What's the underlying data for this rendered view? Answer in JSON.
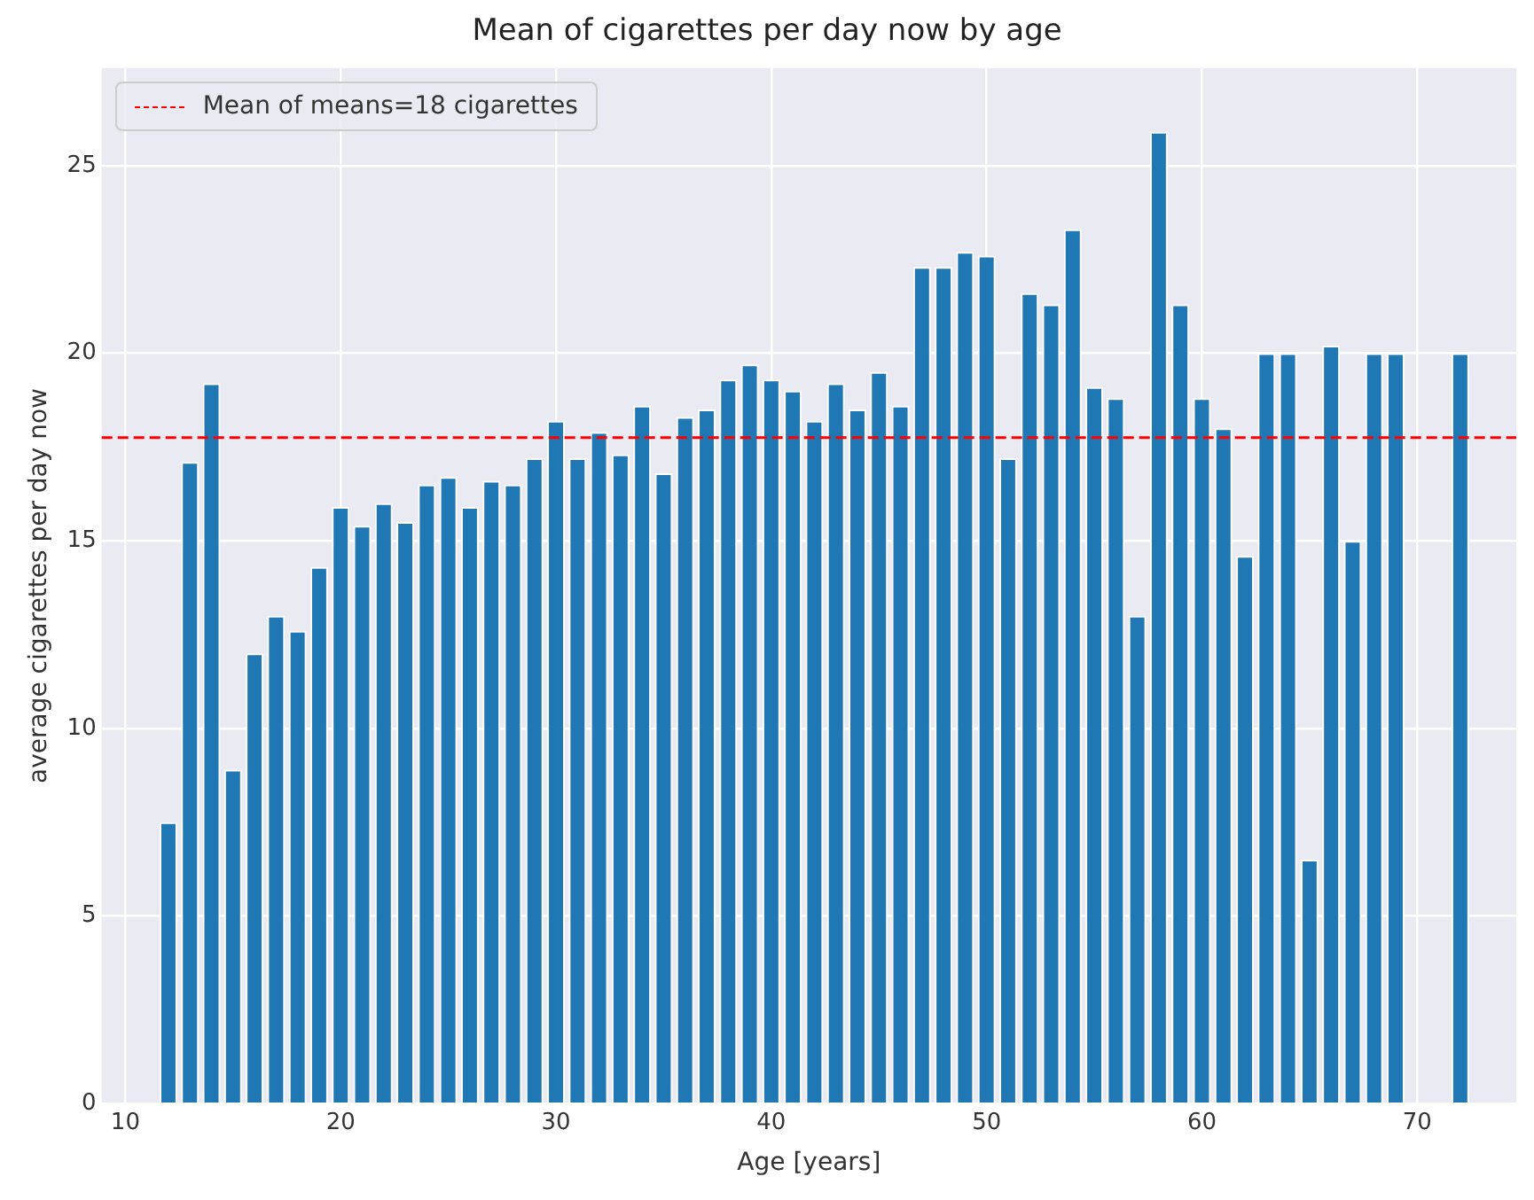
{
  "chart_data": {
    "type": "bar",
    "title": "Mean of cigarettes per day now by age",
    "xlabel": "Age [years]",
    "ylabel": "average cigarettes per day now",
    "x": [
      12,
      13,
      14,
      15,
      16,
      17,
      18,
      19,
      20,
      21,
      22,
      23,
      24,
      25,
      26,
      27,
      28,
      29,
      30,
      31,
      32,
      33,
      34,
      35,
      36,
      37,
      38,
      39,
      40,
      41,
      42,
      43,
      44,
      45,
      46,
      47,
      48,
      49,
      50,
      51,
      52,
      53,
      54,
      55,
      56,
      57,
      58,
      59,
      60,
      61,
      62,
      63,
      64,
      65,
      66,
      67,
      68,
      69,
      72
    ],
    "values": [
      7.5,
      17.1,
      19.2,
      8.9,
      12.0,
      13.0,
      12.6,
      14.3,
      15.9,
      15.4,
      16.0,
      15.5,
      16.5,
      16.7,
      15.9,
      16.6,
      16.5,
      17.2,
      18.2,
      17.2,
      17.9,
      17.3,
      18.6,
      16.8,
      18.3,
      18.5,
      19.3,
      19.7,
      19.3,
      19.0,
      18.2,
      19.2,
      18.5,
      19.5,
      18.6,
      22.3,
      22.3,
      22.7,
      22.6,
      17.2,
      21.6,
      21.3,
      23.3,
      19.1,
      18.8,
      13.0,
      25.9,
      21.3,
      18.8,
      18.0,
      14.6,
      20.0,
      20.0,
      6.5,
      20.2,
      15.0,
      20.0,
      20.0,
      20.0
    ],
    "color": "#1f77b4",
    "xlim": [
      8.9,
      74.6
    ],
    "xticks": [
      10,
      20,
      30,
      40,
      50,
      60,
      70
    ],
    "ylim": [
      0,
      27.6
    ],
    "yticks": [
      0,
      5,
      10,
      15,
      20,
      25
    ],
    "ref_lines": [
      {
        "axis": "y",
        "value": 17.75,
        "label": "Mean of means=18 cigarettes",
        "color": "#ff0000",
        "line_style": "dashed"
      }
    ],
    "grid": true,
    "legend": "top left"
  }
}
